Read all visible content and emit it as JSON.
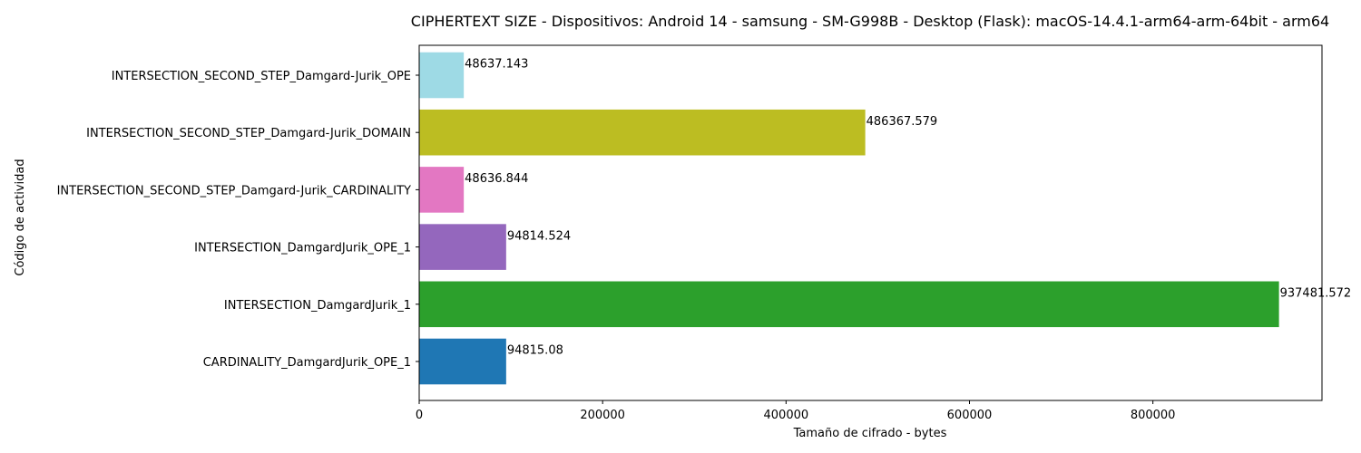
{
  "chart_data": {
    "type": "bar",
    "orientation": "horizontal",
    "title": "CIPHERTEXT SIZE - Dispositivos: Android 14 - samsung - SM-G998B - Desktop (Flask): macOS-14.4.1-arm64-arm-64bit - arm64",
    "xlabel": "Tamaño de cifrado - bytes",
    "ylabel": "Código de actividad",
    "categories": [
      "CARDINALITY_DamgardJurik_OPE_1",
      "INTERSECTION_DamgardJurik_1",
      "INTERSECTION_DamgardJurik_OPE_1",
      "INTERSECTION_SECOND_STEP_Damgard-Jurik_CARDINALITY",
      "INTERSECTION_SECOND_STEP_Damgard-Jurik_DOMAIN",
      "INTERSECTION_SECOND_STEP_Damgard-Jurik_OPE"
    ],
    "values": [
      94815.08,
      937481.572,
      94814.524,
      48636.844,
      486367.579,
      48637.143
    ],
    "value_labels": [
      "94815.08",
      "937481.572",
      "94814.524",
      "48636.844",
      "486367.579",
      "48637.143"
    ],
    "colors": [
      "#1f77b4",
      "#2ca02c",
      "#9467bd",
      "#e377c2",
      "#bcbd22",
      "#9edae5"
    ],
    "xlim": [
      0,
      984356
    ],
    "xticks": [
      0,
      200000,
      400000,
      600000,
      800000
    ],
    "xtick_labels": [
      "0",
      "200000",
      "400000",
      "600000",
      "800000"
    ],
    "grid": false
  }
}
